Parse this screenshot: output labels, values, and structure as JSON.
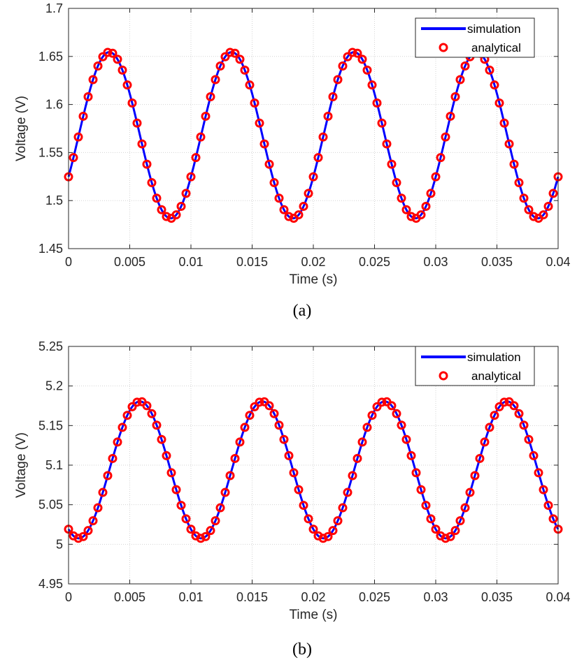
{
  "legend": {
    "simulation_label": "simulation",
    "analytical_label": "analytical"
  },
  "colors": {
    "simulation": "#0000ff",
    "analytical": "#ff0000",
    "grid": "#d3d3d3",
    "axis": "#262626"
  },
  "chart_data": [
    {
      "type": "line",
      "panel_label": "(a)",
      "xlabel": "Time (s)",
      "ylabel": "Voltage (V)",
      "xlim": [
        0,
        0.04
      ],
      "ylim": [
        1.45,
        1.7
      ],
      "xticks": [
        0,
        0.005,
        0.01,
        0.015,
        0.02,
        0.025,
        0.03,
        0.035,
        0.04
      ],
      "xtick_labels": [
        "0",
        "0.005",
        "0.01",
        "0.015",
        "0.02",
        "0.025",
        "0.03",
        "0.035",
        "0.04"
      ],
      "yticks": [
        1.45,
        1.5,
        1.55,
        1.6,
        1.65,
        1.7
      ],
      "ytick_labels": [
        "1.45",
        "1.5",
        "1.55",
        "1.6",
        "1.65",
        "1.7"
      ],
      "grid": true,
      "legend_position": "top-right",
      "series": [
        {
          "name": "simulation",
          "style": "line",
          "waveform": {
            "offset": 1.568,
            "amplitude": 0.0865,
            "frequency_hz": 100,
            "phase_deg": -30,
            "t_start": 0,
            "t_end": 0.04
          }
        },
        {
          "name": "analytical",
          "style": "marker-circle",
          "waveform": {
            "offset": 1.568,
            "amplitude": 0.0865,
            "frequency_hz": 100,
            "phase_deg": -30,
            "t_start": 0,
            "t_end": 0.04,
            "sample_step": 0.0004
          }
        }
      ]
    },
    {
      "type": "line",
      "panel_label": "(b)",
      "xlabel": "Time (s)",
      "ylabel": "Voltage (V)",
      "xlim": [
        0,
        0.04
      ],
      "ylim": [
        4.95,
        5.25
      ],
      "xticks": [
        0,
        0.005,
        0.01,
        0.015,
        0.02,
        0.025,
        0.03,
        0.035,
        0.04
      ],
      "xtick_labels": [
        "0",
        "0.005",
        "0.01",
        "0.015",
        "0.02",
        "0.025",
        "0.03",
        "0.035",
        "0.04"
      ],
      "yticks": [
        4.95,
        5.0,
        5.05,
        5.1,
        5.15,
        5.2,
        5.25
      ],
      "ytick_labels": [
        "4.95",
        "5",
        "5.05",
        "5.1",
        "5.15",
        "5.2",
        "5.25"
      ],
      "grid": true,
      "legend_position": "top-right",
      "series": [
        {
          "name": "simulation",
          "style": "line",
          "waveform": {
            "offset": 5.094,
            "amplitude": 0.0865,
            "frequency_hz": 100,
            "phase_deg": -120,
            "t_start": 0,
            "t_end": 0.04
          }
        },
        {
          "name": "analytical",
          "style": "marker-circle",
          "waveform": {
            "offset": 5.094,
            "amplitude": 0.0865,
            "frequency_hz": 100,
            "phase_deg": -120,
            "t_start": 0,
            "t_end": 0.04,
            "sample_step": 0.0004
          }
        }
      ]
    }
  ]
}
